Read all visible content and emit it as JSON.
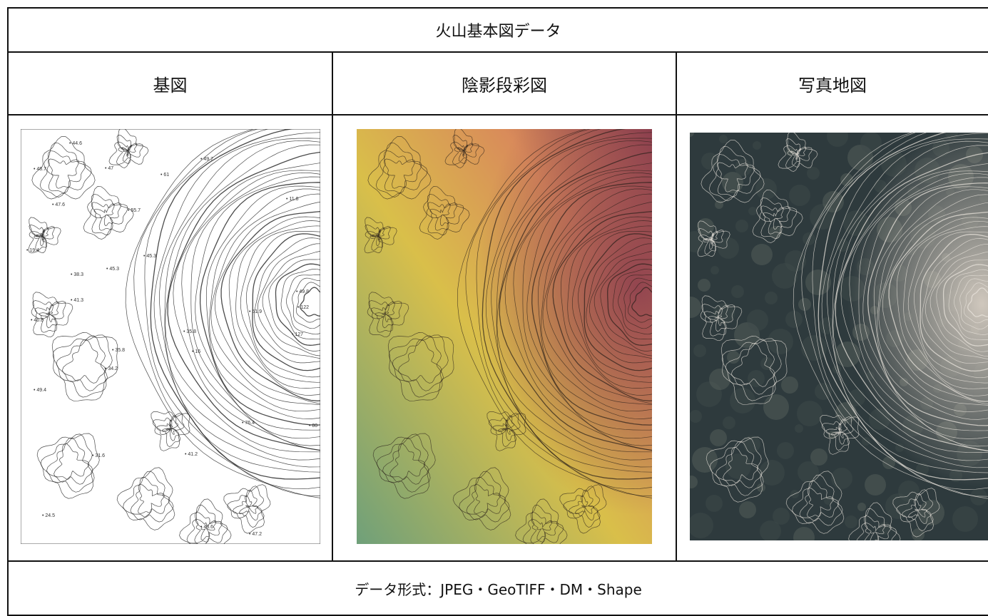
{
  "table": {
    "title": "火山基本図データ",
    "columns": [
      "基図",
      "陰影段彩図",
      "写真地図"
    ],
    "footer": "データ形式：JPEG・GeoTIFF・DM・Shape"
  },
  "maps": {
    "base": {
      "spot_heights": [
        "44.6",
        "48.7",
        "47",
        "61",
        "49.7",
        "11.8",
        "47.6",
        "55.7",
        "45.3",
        "19.4",
        "38.3",
        "45.3",
        "35.8",
        "41.3",
        "40.8",
        "49.8",
        "122",
        "127",
        "51.9",
        "35.8",
        "34.2",
        "16",
        "49.4",
        "31.6",
        "41.2",
        "76.4",
        "80",
        "24.5",
        "43.6",
        "47.2"
      ]
    },
    "colors": {
      "contour_line": "#2b2b2b",
      "relief_low": "#6fa07a",
      "relief_mid": "#d9bf4a",
      "relief_high": "#8c3f4e",
      "photo_dark": "#2e3a3d",
      "photo_light": "#d8cfc4"
    }
  }
}
